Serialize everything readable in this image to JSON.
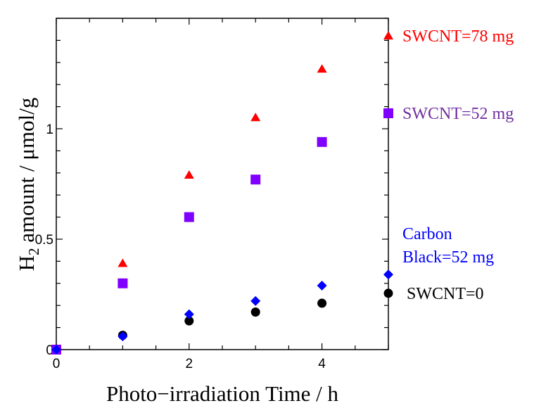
{
  "chart_data": {
    "type": "scatter",
    "title": "",
    "xlabel": "Photo−irradiation Time / h",
    "ylabel_main": "H",
    "ylabel_sub": "2",
    "ylabel_rest": " amount / μmol/g",
    "xlim": [
      0,
      5
    ],
    "ylim": [
      0,
      1.5
    ],
    "x_ticks": [
      0,
      2,
      4
    ],
    "x_tick_labels": [
      "0",
      "2",
      "4"
    ],
    "x_minor_step": 0.5,
    "y_ticks": [
      0,
      0.5,
      1
    ],
    "y_tick_labels": [
      "0",
      "0.5",
      "1"
    ],
    "y_minor_step": 0.1,
    "grid": false,
    "legend_placement": "right, inline labels beside last points",
    "series": [
      {
        "name": "SWCNT=78 mg",
        "label_lines": [
          "SWCNT=78 mg"
        ],
        "marker": "triangle",
        "color": "#ff0000",
        "label_color": "#ff0000",
        "x": [
          1,
          2,
          3,
          4,
          5
        ],
        "y": [
          0.39,
          0.79,
          1.05,
          1.27,
          1.42
        ]
      },
      {
        "name": "SWCNT=52 mg",
        "label_lines": [
          "SWCNT=52 mg"
        ],
        "marker": "square",
        "color": "#8000ff",
        "label_color": "#7030a0",
        "x": [
          0,
          1,
          2,
          3,
          4,
          5
        ],
        "y": [
          0,
          0.3,
          0.6,
          0.77,
          0.94,
          1.07
        ]
      },
      {
        "name": "Carbon Black=52 mg",
        "label_lines": [
          "Carbon",
          "Black=52 mg"
        ],
        "marker": "diamond",
        "color": "#0000ff",
        "label_color": "#0000ff",
        "x": [
          0,
          1,
          2,
          3,
          4,
          5
        ],
        "y": [
          0,
          0.06,
          0.16,
          0.22,
          0.29,
          0.34
        ]
      },
      {
        "name": "SWCNT=0",
        "label_lines": [
          "SWCNT=0"
        ],
        "marker": "circle",
        "color": "#000000",
        "label_color": "#000000",
        "x": [
          1,
          2,
          3,
          4,
          5
        ],
        "y": [
          0.065,
          0.13,
          0.17,
          0.21,
          0.255
        ]
      }
    ]
  }
}
